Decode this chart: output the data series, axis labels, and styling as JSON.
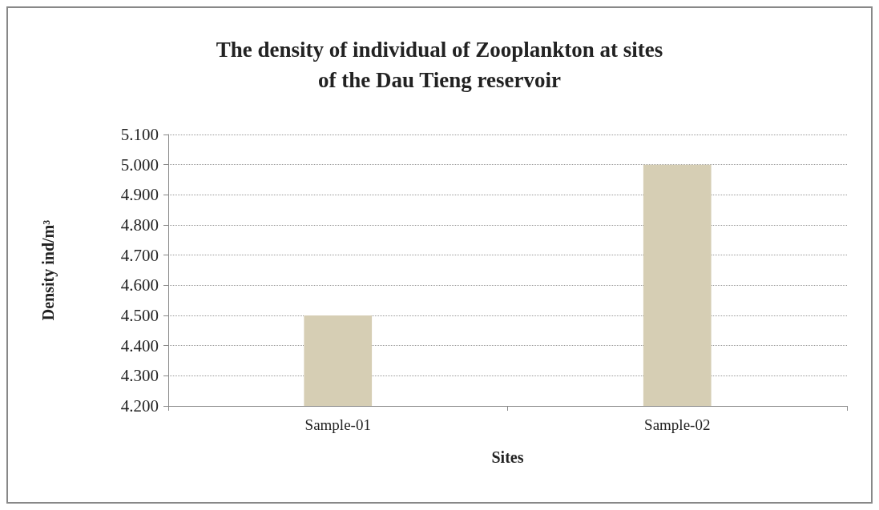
{
  "chart_data": {
    "type": "bar",
    "title": "The density of individual of Zooplankton at sites\nof the Dau Tieng reservoir",
    "xlabel": "Sites",
    "ylabel": "Density ind/m³",
    "categories": [
      "Sample-01",
      "Sample-02"
    ],
    "values": [
      4.5,
      5.0
    ],
    "color": "#d6ceb4",
    "ylim": [
      4.2,
      5.1
    ],
    "yticks": [
      {
        "value": 4.2,
        "label": "4.200"
      },
      {
        "value": 4.3,
        "label": "4.300"
      },
      {
        "value": 4.4,
        "label": "4.400"
      },
      {
        "value": 4.5,
        "label": "4.500"
      },
      {
        "value": 4.6,
        "label": "4.600"
      },
      {
        "value": 4.7,
        "label": "4.700"
      },
      {
        "value": 4.8,
        "label": "4.800"
      },
      {
        "value": 4.9,
        "label": "4.900"
      },
      {
        "value": 5.0,
        "label": "5.000"
      },
      {
        "value": 5.1,
        "label": "5.100"
      }
    ],
    "grid": "y"
  }
}
